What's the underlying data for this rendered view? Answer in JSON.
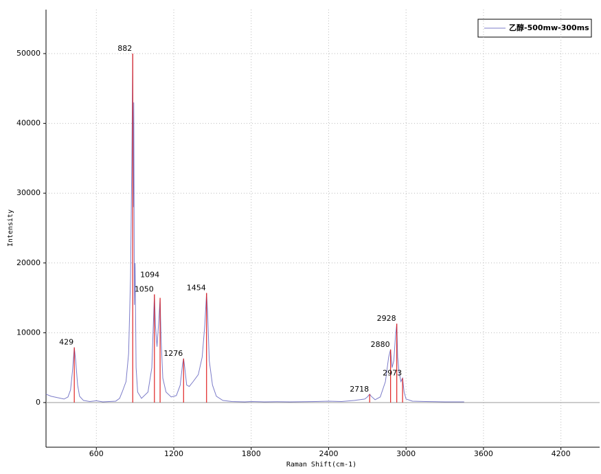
{
  "chart_data": {
    "type": "line",
    "xlabel": "Raman Shift(cm-1)",
    "ylabel": "Intensity",
    "xlim": [
      210,
      4500
    ],
    "ylim": [
      -6400,
      56300
    ],
    "xticks": [
      600,
      1200,
      1800,
      2400,
      3000,
      3600,
      4200
    ],
    "yticks": [
      0,
      10000,
      20000,
      30000,
      40000,
      50000
    ],
    "grid": true,
    "legend": "upper right",
    "series": [
      {
        "name": "乙醇-500mw-300ms",
        "color": "#7b7bc8",
        "x": [
          210,
          250,
          300,
          350,
          380,
          400,
          415,
          429,
          440,
          455,
          470,
          500,
          550,
          600,
          650,
          700,
          750,
          780,
          800,
          830,
          850,
          865,
          875,
          882,
          886,
          890,
          895,
          900,
          908,
          920,
          950,
          1000,
          1030,
          1045,
          1050,
          1058,
          1070,
          1085,
          1094,
          1102,
          1115,
          1140,
          1180,
          1220,
          1250,
          1268,
          1276,
          1285,
          1300,
          1320,
          1350,
          1390,
          1420,
          1440,
          1454,
          1462,
          1475,
          1500,
          1530,
          1580,
          1650,
          1750,
          1800,
          1900,
          2000,
          2100,
          2200,
          2300,
          2400,
          2500,
          2600,
          2680,
          2700,
          2718,
          2730,
          2760,
          2800,
          2840,
          2865,
          2880,
          2892,
          2905,
          2918,
          2928,
          2935,
          2945,
          2960,
          2973,
          2985,
          3000,
          3050,
          3150,
          3300,
          3450
        ],
        "values": [
          1200,
          900,
          700,
          500,
          800,
          1800,
          4500,
          7900,
          6000,
          2500,
          900,
          300,
          150,
          250,
          100,
          150,
          200,
          600,
          1500,
          3000,
          7000,
          18000,
          35000,
          50000,
          28000,
          43000,
          14000,
          20000,
          5000,
          1500,
          600,
          1500,
          5000,
          13000,
          15500,
          11000,
          8000,
          12000,
          15000,
          9000,
          3500,
          1500,
          800,
          1000,
          2500,
          5500,
          6300,
          5000,
          2500,
          2300,
          3000,
          4000,
          6500,
          11000,
          15700,
          13000,
          6000,
          2500,
          900,
          300,
          150,
          100,
          150,
          100,
          120,
          100,
          120,
          150,
          200,
          150,
          300,
          500,
          800,
          1200,
          900,
          400,
          800,
          3000,
          6500,
          7600,
          5000,
          6000,
          9500,
          11300,
          6500,
          4500,
          3000,
          3500,
          1500,
          500,
          200,
          150,
          100,
          100
        ]
      }
    ],
    "peaks": {
      "color": "#e02020",
      "x": [
        429,
        882,
        1050,
        1094,
        1276,
        1454,
        2718,
        2880,
        2928,
        2973
      ],
      "values": [
        7900,
        50000,
        15500,
        15000,
        6300,
        15700,
        1200,
        7600,
        11300,
        3500
      ]
    }
  }
}
